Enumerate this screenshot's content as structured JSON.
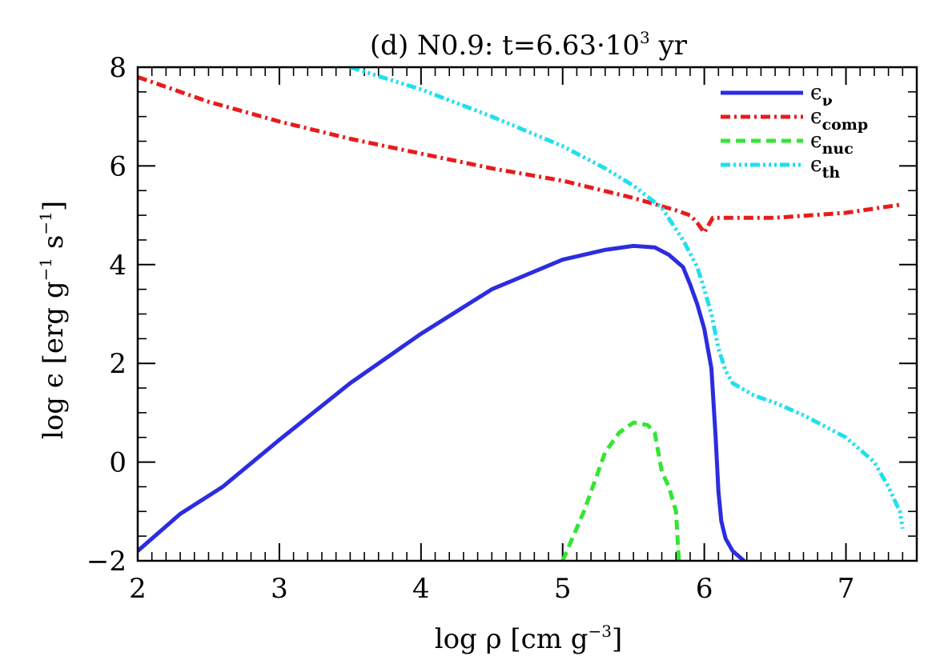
{
  "chart_data": {
    "type": "line",
    "title_prefix": "(d) N0.9: t=6.63·10",
    "title_exp": "3",
    "title_suffix": " yr",
    "xlabel_main": "log ρ [cm g",
    "xlabel_exp": "−3",
    "xlabel_end": "]",
    "ylabel_main": "log ϵ [erg g",
    "ylabel_exp1": "−1",
    "ylabel_mid": " s",
    "ylabel_exp2": "−1",
    "ylabel_end": "]",
    "xlim": [
      2,
      7.5
    ],
    "ylim": [
      -2,
      8
    ],
    "xticks": [
      {
        "v": 2,
        "label": "2"
      },
      {
        "v": 3,
        "label": "3"
      },
      {
        "v": 4,
        "label": "4"
      },
      {
        "v": 5,
        "label": "5"
      },
      {
        "v": 6,
        "label": "6"
      },
      {
        "v": 7,
        "label": "7"
      }
    ],
    "yticks": [
      {
        "v": -2,
        "label": "−2"
      },
      {
        "v": 0,
        "label": "0"
      },
      {
        "v": 2,
        "label": "2"
      },
      {
        "v": 4,
        "label": "4"
      },
      {
        "v": 6,
        "label": "6"
      },
      {
        "v": 8,
        "label": "8"
      }
    ],
    "legend_position": "top-right",
    "series": [
      {
        "key": "nu",
        "label_main": "ϵ",
        "label_sub": "ν",
        "color": "#2c2ce0",
        "dash": "",
        "x": [
          2.0,
          2.3,
          2.6,
          3.0,
          3.5,
          4.0,
          4.5,
          5.0,
          5.3,
          5.5,
          5.65,
          5.75,
          5.85,
          5.9,
          5.95,
          6.0,
          6.05,
          6.08,
          6.1,
          6.12,
          6.15,
          6.2,
          6.28
        ],
        "y": [
          -1.8,
          -1.05,
          -0.5,
          0.45,
          1.6,
          2.6,
          3.5,
          4.1,
          4.3,
          4.38,
          4.35,
          4.2,
          3.95,
          3.6,
          3.2,
          2.7,
          1.9,
          0.5,
          -0.6,
          -1.2,
          -1.55,
          -1.8,
          -2.0
        ]
      },
      {
        "key": "comp",
        "label_main": "ϵ",
        "label_sub": "comp",
        "color": "#e81c1c",
        "dash": "12 5 3 5",
        "x": [
          2.0,
          2.5,
          3.0,
          3.5,
          4.0,
          4.5,
          5.0,
          5.5,
          5.8,
          5.9,
          5.95,
          6.0,
          6.03,
          6.06,
          6.1,
          6.5,
          7.0,
          7.4
        ],
        "y": [
          7.8,
          7.3,
          6.9,
          6.55,
          6.25,
          5.95,
          5.7,
          5.35,
          5.1,
          5.0,
          4.85,
          4.65,
          4.8,
          4.95,
          4.95,
          4.95,
          5.05,
          5.22
        ]
      },
      {
        "key": "nuc",
        "label_main": "ϵ",
        "label_sub": "nuc",
        "color": "#33e633",
        "dash": "12 7",
        "x": [
          5.0,
          5.15,
          5.3,
          5.4,
          5.5,
          5.6,
          5.65,
          5.7,
          5.75,
          5.8,
          5.82
        ],
        "y": [
          -2.0,
          -1.0,
          0.2,
          0.6,
          0.8,
          0.75,
          0.6,
          -0.2,
          -0.5,
          -1.0,
          -2.0
        ]
      },
      {
        "key": "th",
        "label_main": "ϵ",
        "label_sub": "th",
        "color": "#1fe0ee",
        "dash": "12 4 3 4 3 4 3 4",
        "x": [
          3.5,
          4.0,
          4.5,
          5.0,
          5.3,
          5.5,
          5.7,
          5.85,
          5.95,
          6.0,
          6.05,
          6.1,
          6.15,
          6.2,
          6.35,
          6.5,
          6.7,
          7.0,
          7.2,
          7.3,
          7.38,
          7.4
        ],
        "y": [
          8.0,
          7.55,
          7.0,
          6.4,
          5.95,
          5.6,
          5.15,
          4.5,
          3.95,
          3.5,
          3.0,
          2.3,
          1.85,
          1.6,
          1.35,
          1.2,
          0.95,
          0.5,
          0.0,
          -0.5,
          -1.0,
          -1.35
        ]
      }
    ]
  }
}
